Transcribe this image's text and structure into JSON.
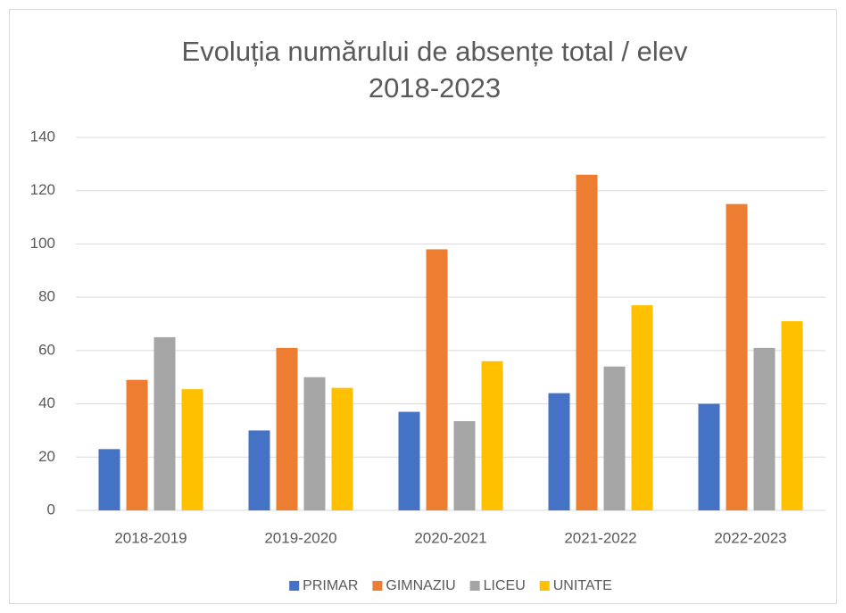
{
  "chart_data": {
    "type": "bar",
    "title": [
      "Evoluția numărului de absențe total / elev",
      "2018-2023"
    ],
    "categories": [
      "2018-2019",
      "2019-2020",
      "2020-2021",
      "2021-2022",
      "2022-2023"
    ],
    "series": [
      {
        "name": "PRIMAR",
        "color": "#4472c4",
        "values": [
          23,
          30,
          37,
          44,
          40
        ]
      },
      {
        "name": "GIMNAZIU",
        "color": "#ed7d31",
        "values": [
          49,
          61,
          98,
          126,
          115
        ]
      },
      {
        "name": "LICEU",
        "color": "#a5a5a5",
        "values": [
          65,
          50,
          33.5,
          54,
          61
        ]
      },
      {
        "name": "UNITATE",
        "color": "#ffc000",
        "values": [
          45.5,
          46,
          56,
          77,
          71
        ]
      }
    ],
    "ylim": [
      0,
      140
    ],
    "yticks": [
      0,
      20,
      40,
      60,
      80,
      100,
      120,
      140
    ],
    "grid": true,
    "legend": "bottom"
  }
}
